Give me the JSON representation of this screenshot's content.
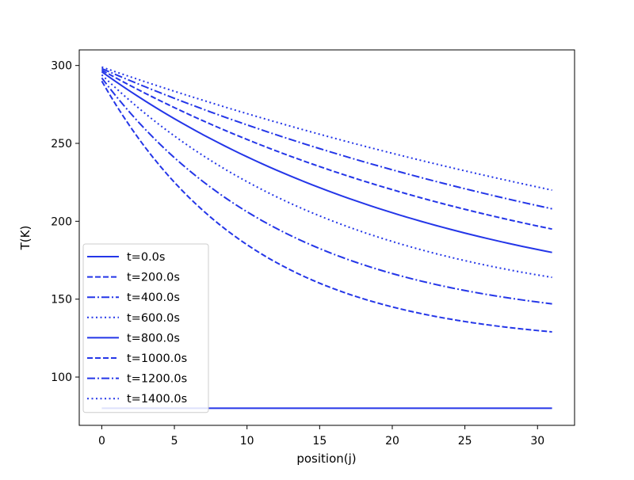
{
  "chart_data": {
    "type": "line",
    "title": "",
    "xlabel": "position(j)",
    "ylabel": "T(K)",
    "xlim": [
      -1.55,
      32.55
    ],
    "ylim": [
      69,
      310
    ],
    "xticks": [
      0,
      5,
      10,
      15,
      20,
      25,
      30
    ],
    "yticks": [
      100,
      150,
      200,
      250,
      300
    ],
    "grid": false,
    "legend_position": "lower-left",
    "line_color": "#2436e8",
    "x": [
      0,
      31
    ],
    "series": [
      {
        "name": "t=0.0s",
        "style": "solid",
        "start": 80,
        "end": 80,
        "curvature": 0
      },
      {
        "name": "t=200.0s",
        "style": "dashed",
        "start": 290,
        "end": 129,
        "curvature": 0.3
      },
      {
        "name": "t=400.0s",
        "style": "dashdot",
        "start": 292,
        "end": 147,
        "curvature": 0.24
      },
      {
        "name": "t=600.0s",
        "style": "dotted",
        "start": 294,
        "end": 164,
        "curvature": 0.18
      },
      {
        "name": "t=800.0s",
        "style": "solid",
        "start": 296,
        "end": 180,
        "curvature": 0.13
      },
      {
        "name": "t=1000.0s",
        "style": "dashed",
        "start": 297,
        "end": 195,
        "curvature": 0.1
      },
      {
        "name": "t=1200.0s",
        "style": "dashdot",
        "start": 298,
        "end": 208,
        "curvature": 0.07
      },
      {
        "name": "t=1400.0s",
        "style": "dotted",
        "start": 299,
        "end": 220,
        "curvature": 0.05
      }
    ]
  }
}
